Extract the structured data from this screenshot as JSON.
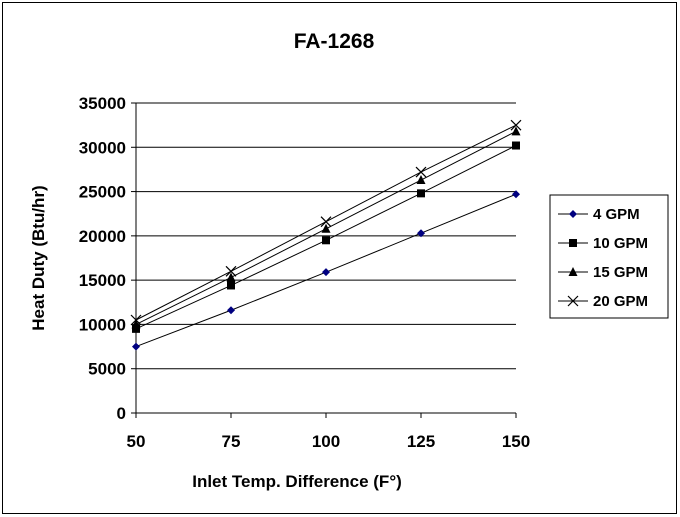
{
  "chart_data": {
    "type": "line",
    "title": "FA-1268",
    "xlabel": "Inlet Temp. Difference (F°)",
    "ylabel": "Heat Duty (Btu/hr)",
    "x": [
      50,
      75,
      100,
      125,
      150
    ],
    "xlim": [
      50,
      150
    ],
    "ylim": [
      0,
      35000
    ],
    "xticks": [
      "50",
      "75",
      "100",
      "125",
      "150"
    ],
    "yticks": [
      "0",
      "5000",
      "10000",
      "15000",
      "20000",
      "25000",
      "30000",
      "35000"
    ],
    "grid": "horizontal",
    "legend_position": "right",
    "series": [
      {
        "name": "4 GPM",
        "marker": "diamond",
        "color": "#000080",
        "values": [
          7500,
          11600,
          15900,
          20300,
          24700
        ]
      },
      {
        "name": "10 GPM",
        "marker": "square",
        "color": "#000000",
        "values": [
          9500,
          14400,
          19500,
          24800,
          30200
        ]
      },
      {
        "name": "15 GPM",
        "marker": "triangle",
        "color": "#000000",
        "values": [
          10000,
          15300,
          20800,
          26300,
          31800
        ]
      },
      {
        "name": "20 GPM",
        "marker": "x",
        "color": "#000000",
        "values": [
          10500,
          16000,
          21600,
          27200,
          32500
        ]
      }
    ]
  }
}
